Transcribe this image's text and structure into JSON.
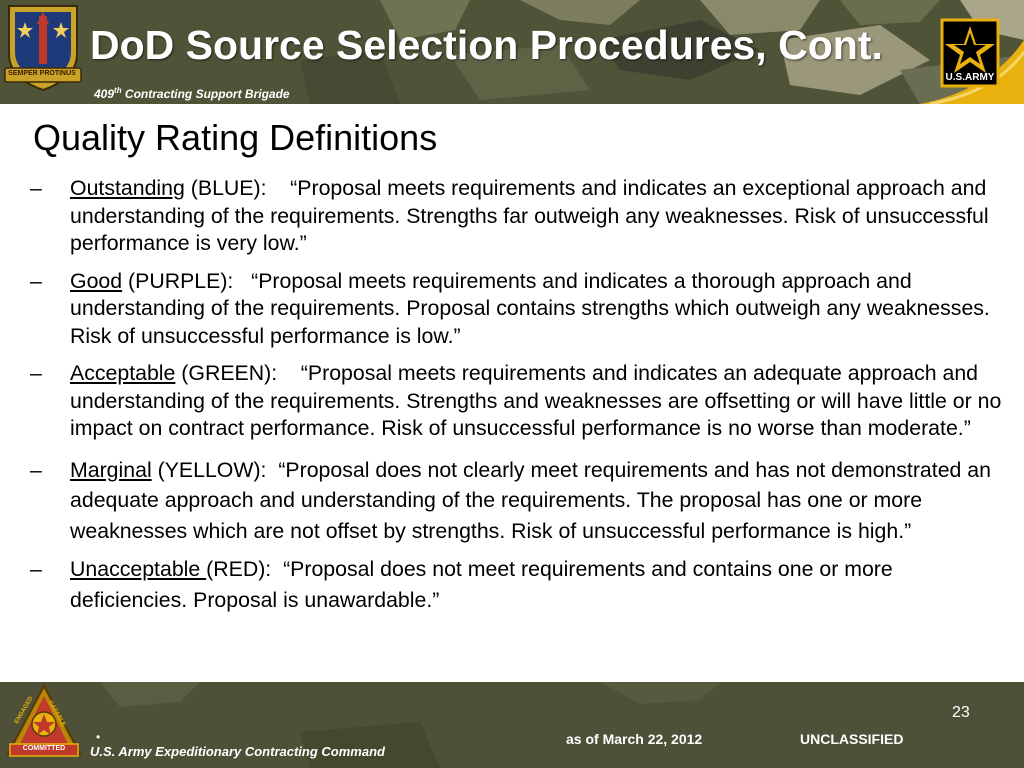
{
  "header": {
    "title": "DoD Source Selection Procedures, Cont.",
    "subtitle_number": "409",
    "subtitle_suffix": "th",
    "subtitle_text": " Contracting Support Brigade",
    "crest_motto": "SEMPER PROTINUS",
    "army_logo_text": "U.S.ARMY",
    "left_logo_icon": "unit-crest-icon",
    "right_logo_icon": "army-star-icon"
  },
  "content": {
    "heading": "Quality Rating Definitions",
    "bullet_symbol": "–",
    "ratings": [
      {
        "term": "Outstanding",
        "color_label": " (BLUE):",
        "definition": "    “Proposal meets requirements and indicates an exceptional approach and understanding of the requirements.  Strengths far outweigh any weaknesses.  Risk of unsuccessful performance is very low.”"
      },
      {
        "term": "Good",
        "color_label": " (PURPLE):",
        "definition": "   “Proposal meets requirements and indicates a thorough approach and understanding of the requirements.  Proposal contains strengths which outweigh any weaknesses.  Risk of unsuccessful performance is low.”"
      },
      {
        "term": "Acceptable",
        "color_label": " (GREEN):",
        "definition": "    “Proposal meets requirements and indicates an adequate approach and understanding of the requirements.  Strengths and weaknesses are offsetting or will have little or no impact on contract performance.  Risk of unsuccessful performance is no worse than moderate.”"
      },
      {
        "term": "Marginal",
        "color_label": " (YELLOW):",
        "definition": "  “Proposal does not clearly meet requirements and has not demonstrated an adequate approach and understanding of the requirements.  The proposal has one or more weaknesses which are not offset by strengths.  Risk of unsuccessful performance is high.”"
      },
      {
        "term": "Unacceptable ",
        "color_label": "(RED):",
        "definition": "  “Proposal does not meet requirements and contains one or more deficiencies.  Proposal is unawardable.”"
      }
    ]
  },
  "footer": {
    "organization": "U.S. Army Expeditionary Contracting Command",
    "dot": "•",
    "page_number": "23",
    "as_of": "as of March 22, 2012",
    "classification": "UNCLASSIFIED",
    "crest_text_1": "ENGAGED",
    "crest_text_2": "CAPABLE",
    "crest_text_3": "COMMITTED",
    "left_logo_icon": "ecc-crest-icon"
  },
  "colors": {
    "header_bg": "#5b6044",
    "footer_bg": "#4e5137",
    "gold_accent": "#e8b10e",
    "text": "#000000",
    "header_text": "#ffffff"
  }
}
